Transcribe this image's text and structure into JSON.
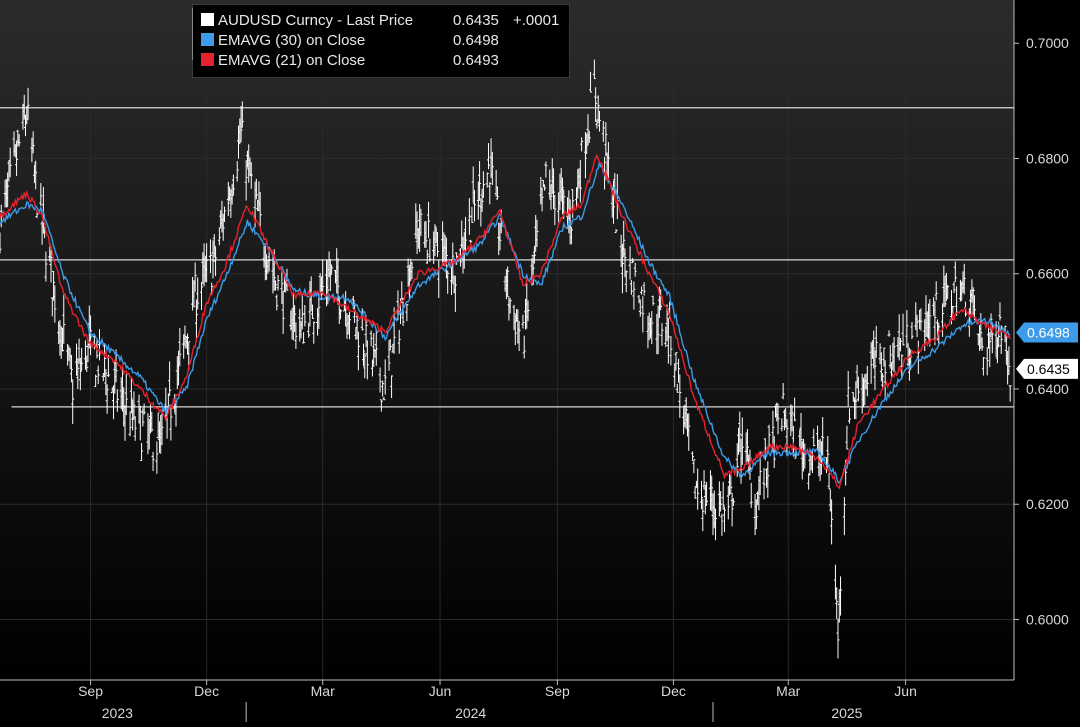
{
  "colors": {
    "background_top": "#2b2b2b",
    "background_bottom": "#000000",
    "price": "#ffffff",
    "ema30": "#3d9be9",
    "ema21": "#e8212e",
    "grid": "#2a2a2a",
    "hline": "#d8d8d8"
  },
  "legend": {
    "rows": [
      {
        "name": "AUDUSD Curncy - Last Price",
        "value": "0.6435",
        "change": "+.0001",
        "color": "#ffffff"
      },
      {
        "name": "EMAVG (30)  on Close",
        "value": "0.6498",
        "change": "",
        "color": "#3d9be9"
      },
      {
        "name": "EMAVG (21)  on Close",
        "value": "0.6493",
        "change": "",
        "color": "#e8212e"
      }
    ]
  },
  "last_labels": {
    "ema30": "0.6498",
    "price": "0.6435"
  },
  "chart_data": {
    "type": "line",
    "y_scale": "linear",
    "ylim": [
      0.5895,
      0.7075
    ],
    "xlim": [
      "2023-06-22",
      "2025-08-25"
    ],
    "yticks": [
      {
        "value": 0.6,
        "label": "0.6000"
      },
      {
        "value": 0.62,
        "label": "0.6200"
      },
      {
        "value": 0.64,
        "label": "0.6400"
      },
      {
        "value": 0.66,
        "label": "0.6600"
      },
      {
        "value": 0.68,
        "label": "0.6800"
      },
      {
        "value": 0.7,
        "label": "0.7000"
      }
    ],
    "xticks": [
      {
        "date": "2023-09-01",
        "label": "Sep"
      },
      {
        "date": "2023-12-01",
        "label": "Dec"
      },
      {
        "date": "2024-03-01",
        "label": "Mar"
      },
      {
        "date": "2024-06-01",
        "label": "Jun"
      },
      {
        "date": "2024-09-01",
        "label": "Sep"
      },
      {
        "date": "2024-12-01",
        "label": "Dec"
      },
      {
        "date": "2025-03-01",
        "label": "Mar"
      },
      {
        "date": "2025-06-01",
        "label": "Jun"
      }
    ],
    "year_labels": [
      {
        "date": "2023-09-22",
        "label": "2023"
      },
      {
        "date": "2024-06-25",
        "label": "2024"
      },
      {
        "date": "2025-04-16",
        "label": "2025"
      }
    ],
    "year_separators": [
      "2024-01-01",
      "2025-01-01"
    ],
    "grid": true,
    "horizontal_lines": [
      {
        "value": 0.6888,
        "start": "2023-06-22",
        "end": "2025-08-25"
      },
      {
        "value": 0.6624,
        "start": "2023-06-22",
        "end": "2025-08-25"
      },
      {
        "value": 0.6369,
        "start": "2023-07-01",
        "end": "2025-08-25"
      }
    ],
    "series": [
      {
        "name": "AUDUSD Curncy - Last Price",
        "style": "ohlc",
        "anchors": [
          [
            "2023-06-22",
            0.668
          ],
          [
            "2023-07-13",
            0.688
          ],
          [
            "2023-07-21",
            0.6735
          ],
          [
            "2023-08-05",
            0.655
          ],
          [
            "2023-08-18",
            0.6405
          ],
          [
            "2023-08-31",
            0.647
          ],
          [
            "2023-09-15",
            0.642
          ],
          [
            "2023-10-06",
            0.634
          ],
          [
            "2023-10-26",
            0.63
          ],
          [
            "2023-11-08",
            0.642
          ],
          [
            "2023-11-22",
            0.656
          ],
          [
            "2023-12-07",
            0.662
          ],
          [
            "2023-12-28",
            0.684
          ],
          [
            "2024-01-10",
            0.67
          ],
          [
            "2024-01-25",
            0.658
          ],
          [
            "2024-02-13",
            0.65
          ],
          [
            "2024-03-07",
            0.66
          ],
          [
            "2024-03-26",
            0.652
          ],
          [
            "2024-04-19",
            0.64
          ],
          [
            "2024-05-15",
            0.668
          ],
          [
            "2024-06-12",
            0.661
          ],
          [
            "2024-07-10",
            0.679
          ],
          [
            "2024-07-25",
            0.656
          ],
          [
            "2024-08-05",
            0.648
          ],
          [
            "2024-08-23",
            0.676
          ],
          [
            "2024-09-12",
            0.67
          ],
          [
            "2024-09-30",
            0.692
          ],
          [
            "2024-10-22",
            0.664
          ],
          [
            "2024-11-12",
            0.653
          ],
          [
            "2024-11-28",
            0.651
          ],
          [
            "2024-12-18",
            0.623
          ],
          [
            "2025-01-13",
            0.618
          ],
          [
            "2025-01-24",
            0.632
          ],
          [
            "2025-02-03",
            0.62
          ],
          [
            "2025-02-24",
            0.636
          ],
          [
            "2025-03-14",
            0.629
          ],
          [
            "2025-04-01",
            0.628
          ],
          [
            "2025-04-09",
            0.598
          ],
          [
            "2025-04-17",
            0.637
          ],
          [
            "2025-05-06",
            0.644
          ],
          [
            "2025-06-03",
            0.648
          ],
          [
            "2025-06-24",
            0.653
          ],
          [
            "2025-07-10",
            0.657
          ],
          [
            "2025-07-22",
            0.656
          ],
          [
            "2025-08-01",
            0.646
          ],
          [
            "2025-08-15",
            0.652
          ],
          [
            "2025-08-22",
            0.6435
          ]
        ]
      },
      {
        "name": "EMAVG (30)  on Close",
        "style": "line",
        "anchors": [
          [
            "2023-06-22",
            0.669
          ],
          [
            "2023-07-13",
            0.672
          ],
          [
            "2023-07-25",
            0.671
          ],
          [
            "2023-08-10",
            0.66
          ],
          [
            "2023-08-31",
            0.65
          ],
          [
            "2023-09-20",
            0.646
          ],
          [
            "2023-10-10",
            0.642
          ],
          [
            "2023-10-30",
            0.636
          ],
          [
            "2023-11-15",
            0.64
          ],
          [
            "2023-12-01",
            0.652
          ],
          [
            "2023-12-15",
            0.659
          ],
          [
            "2024-01-02",
            0.669
          ],
          [
            "2024-01-20",
            0.664
          ],
          [
            "2024-02-08",
            0.657
          ],
          [
            "2024-03-01",
            0.656
          ],
          [
            "2024-03-20",
            0.656
          ],
          [
            "2024-04-19",
            0.649
          ],
          [
            "2024-05-15",
            0.658
          ],
          [
            "2024-06-12",
            0.662
          ],
          [
            "2024-07-02",
            0.665
          ],
          [
            "2024-07-18",
            0.67
          ],
          [
            "2024-08-05",
            0.66
          ],
          [
            "2024-08-19",
            0.658
          ],
          [
            "2024-09-05",
            0.668
          ],
          [
            "2024-09-20",
            0.67
          ],
          [
            "2024-10-04",
            0.679
          ],
          [
            "2024-10-22",
            0.672
          ],
          [
            "2024-11-12",
            0.662
          ],
          [
            "2024-11-28",
            0.656
          ],
          [
            "2024-12-18",
            0.641
          ],
          [
            "2025-01-10",
            0.628
          ],
          [
            "2025-01-24",
            0.625
          ],
          [
            "2025-02-14",
            0.629
          ],
          [
            "2025-03-05",
            0.629
          ],
          [
            "2025-03-25",
            0.629
          ],
          [
            "2025-04-10",
            0.624
          ],
          [
            "2025-04-25",
            0.631
          ],
          [
            "2025-05-15",
            0.638
          ],
          [
            "2025-06-05",
            0.644
          ],
          [
            "2025-06-25",
            0.647
          ],
          [
            "2025-07-15",
            0.651
          ],
          [
            "2025-08-01",
            0.652
          ],
          [
            "2025-08-22",
            0.6498
          ]
        ]
      },
      {
        "name": "EMAVG (21)  on Close",
        "style": "line",
        "anchors": [
          [
            "2023-06-22",
            0.67
          ],
          [
            "2023-07-13",
            0.674
          ],
          [
            "2023-07-25",
            0.67
          ],
          [
            "2023-08-10",
            0.657
          ],
          [
            "2023-08-31",
            0.648
          ],
          [
            "2023-09-20",
            0.645
          ],
          [
            "2023-10-10",
            0.64
          ],
          [
            "2023-10-30",
            0.635
          ],
          [
            "2023-11-15",
            0.642
          ],
          [
            "2023-12-01",
            0.655
          ],
          [
            "2023-12-15",
            0.661
          ],
          [
            "2024-01-02",
            0.672
          ],
          [
            "2024-01-20",
            0.664
          ],
          [
            "2024-02-08",
            0.656
          ],
          [
            "2024-03-01",
            0.657
          ],
          [
            "2024-03-20",
            0.654
          ],
          [
            "2024-04-19",
            0.65
          ],
          [
            "2024-05-15",
            0.66
          ],
          [
            "2024-06-12",
            0.662
          ],
          [
            "2024-07-02",
            0.666
          ],
          [
            "2024-07-18",
            0.671
          ],
          [
            "2024-08-05",
            0.658
          ],
          [
            "2024-08-19",
            0.66
          ],
          [
            "2024-09-05",
            0.67
          ],
          [
            "2024-09-20",
            0.672
          ],
          [
            "2024-10-02",
            0.681
          ],
          [
            "2024-10-22",
            0.67
          ],
          [
            "2024-11-12",
            0.66
          ],
          [
            "2024-11-28",
            0.653
          ],
          [
            "2024-12-18",
            0.638
          ],
          [
            "2025-01-10",
            0.625
          ],
          [
            "2025-01-24",
            0.626
          ],
          [
            "2025-02-14",
            0.63
          ],
          [
            "2025-03-05",
            0.63
          ],
          [
            "2025-03-25",
            0.628
          ],
          [
            "2025-04-10",
            0.623
          ],
          [
            "2025-04-25",
            0.634
          ],
          [
            "2025-05-15",
            0.64
          ],
          [
            "2025-06-05",
            0.646
          ],
          [
            "2025-06-25",
            0.649
          ],
          [
            "2025-07-15",
            0.654
          ],
          [
            "2025-08-01",
            0.651
          ],
          [
            "2025-08-22",
            0.6493
          ]
        ]
      }
    ]
  }
}
